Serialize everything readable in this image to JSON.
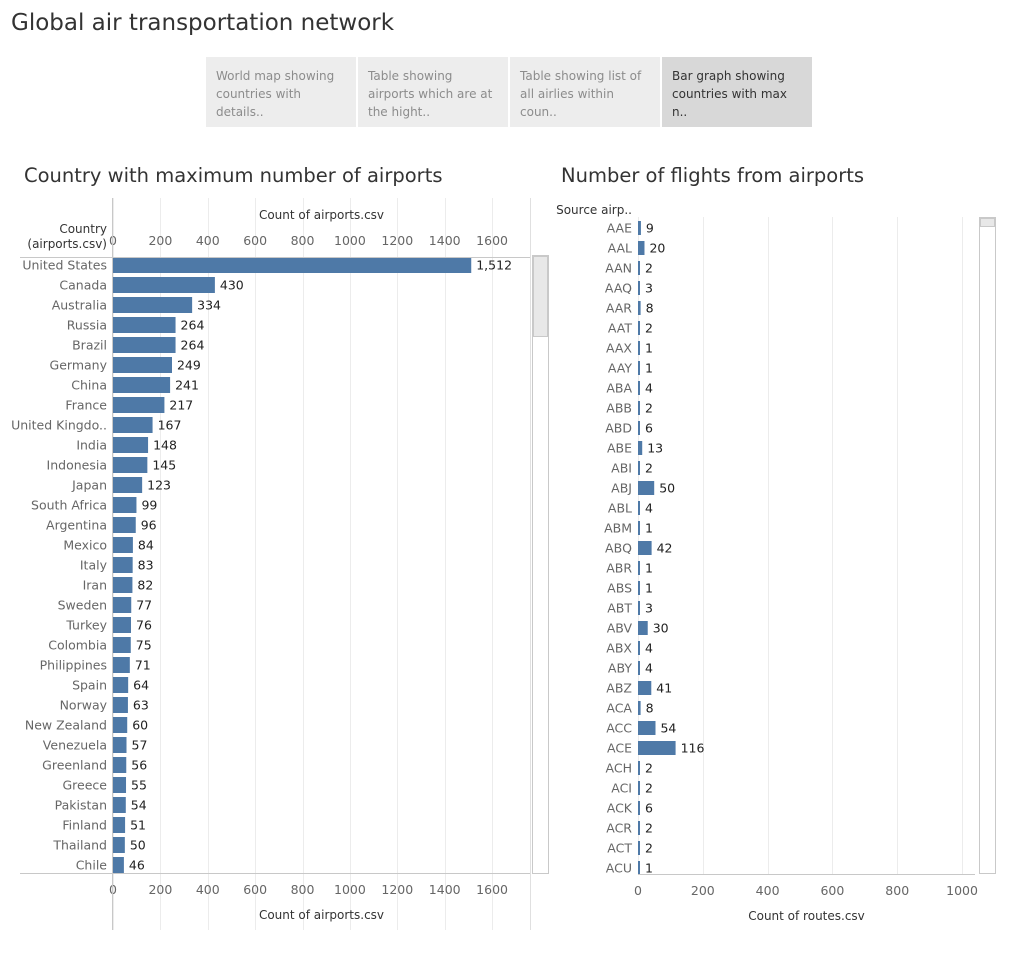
{
  "page": {
    "title": "Global air transportation network"
  },
  "story_points": [
    {
      "label": "World map showing countries with details..",
      "active": false
    },
    {
      "label": "Table showing airports which are at the hight..",
      "active": false
    },
    {
      "label": "Table showing list of all airlies within coun..",
      "active": false
    },
    {
      "label": "Bar graph showing countries with max n..",
      "active": true
    }
  ],
  "chart_data": [
    {
      "type": "bar",
      "orientation": "horizontal",
      "title": "Country with maximum number of airports",
      "row_header": "Country\n(airports.csv)",
      "xlabel": "Count of airports.csv",
      "xlim": [
        0,
        1760
      ],
      "xticks": [
        0,
        200,
        400,
        600,
        800,
        1000,
        1200,
        1400,
        1600
      ],
      "bar_color": "#4e79a7",
      "categories": [
        "United States",
        "Canada",
        "Australia",
        "Russia",
        "Brazil",
        "Germany",
        "China",
        "France",
        "United Kingdo..",
        "India",
        "Indonesia",
        "Japan",
        "South Africa",
        "Argentina",
        "Mexico",
        "Italy",
        "Iran",
        "Sweden",
        "Turkey",
        "Colombia",
        "Philippines",
        "Spain",
        "Norway",
        "New Zealand",
        "Venezuela",
        "Greenland",
        "Greece",
        "Pakistan",
        "Finland",
        "Thailand",
        "Chile"
      ],
      "values": [
        1512,
        430,
        334,
        264,
        264,
        249,
        241,
        217,
        167,
        148,
        145,
        123,
        99,
        96,
        84,
        83,
        82,
        77,
        76,
        75,
        71,
        64,
        63,
        60,
        57,
        56,
        55,
        54,
        51,
        50,
        46
      ],
      "value_labels": [
        "1,512",
        "430",
        "334",
        "264",
        "264",
        "249",
        "241",
        "217",
        "167",
        "148",
        "145",
        "123",
        "99",
        "96",
        "84",
        "83",
        "82",
        "77",
        "76",
        "75",
        "71",
        "64",
        "63",
        "60",
        "57",
        "56",
        "55",
        "54",
        "51",
        "50",
        "46"
      ]
    },
    {
      "type": "bar",
      "orientation": "horizontal",
      "title": "Number of flights from airports",
      "row_header": "Source airp..",
      "xlabel": "Count of routes.csv",
      "xlim": [
        0,
        1040
      ],
      "xticks": [
        0,
        200,
        400,
        600,
        800,
        1000
      ],
      "bar_color": "#4e79a7",
      "categories": [
        "AAE",
        "AAL",
        "AAN",
        "AAQ",
        "AAR",
        "AAT",
        "AAX",
        "AAY",
        "ABA",
        "ABB",
        "ABD",
        "ABE",
        "ABI",
        "ABJ",
        "ABL",
        "ABM",
        "ABQ",
        "ABR",
        "ABS",
        "ABT",
        "ABV",
        "ABX",
        "ABY",
        "ABZ",
        "ACA",
        "ACC",
        "ACE",
        "ACH",
        "ACI",
        "ACK",
        "ACR",
        "ACT",
        "ACU"
      ],
      "values": [
        9,
        20,
        2,
        3,
        8,
        2,
        1,
        1,
        4,
        2,
        6,
        13,
        2,
        50,
        4,
        1,
        42,
        1,
        1,
        3,
        30,
        4,
        4,
        41,
        8,
        54,
        116,
        2,
        2,
        6,
        2,
        2,
        1
      ],
      "value_labels": [
        "9",
        "20",
        "2",
        "3",
        "8",
        "2",
        "1",
        "1",
        "4",
        "2",
        "6",
        "13",
        "2",
        "50",
        "4",
        "1",
        "42",
        "1",
        "1",
        "3",
        "30",
        "4",
        "4",
        "41",
        "8",
        "54",
        "116",
        "2",
        "2",
        "6",
        "2",
        "2",
        "1"
      ]
    }
  ]
}
